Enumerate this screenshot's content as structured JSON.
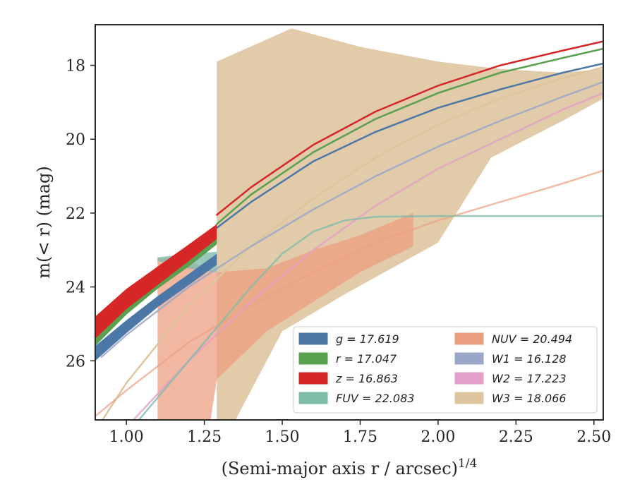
{
  "chart_data": {
    "type": "line",
    "xlabel": "(Semi-major axis r / arcsec)",
    "xlabel_super": "1/4",
    "ylabel": "m(< r) (mag)",
    "xlim": [
      0.9,
      2.53
    ],
    "ylim": [
      27.6,
      16.9
    ],
    "y_inverted": true,
    "x_ticks": [
      1.0,
      1.25,
      1.5,
      1.75,
      2.0,
      2.25,
      2.5
    ],
    "x_tick_labels": [
      "1.00",
      "1.25",
      "1.50",
      "1.75",
      "2.00",
      "2.25",
      "2.50"
    ],
    "y_ticks": [
      18,
      20,
      22,
      24,
      26
    ],
    "y_tick_labels": [
      "18",
      "20",
      "22",
      "24",
      "26"
    ],
    "grid": false,
    "legend_position": "lower-right",
    "legend": [
      {
        "label": "g = 17.619",
        "color": "#4c78a8"
      },
      {
        "label": "NUV = 20.494",
        "color": "#ec9f80"
      },
      {
        "label": "r = 17.047",
        "color": "#59a14f"
      },
      {
        "label": "W1 = 16.128",
        "color": "#9aa7c9"
      },
      {
        "label": "z = 16.863",
        "color": "#d62728"
      },
      {
        "label": "W2 = 17.223",
        "color": "#e29fc8"
      },
      {
        "label": "FUV = 22.083",
        "color": "#7fbcaa"
      },
      {
        "label": "W3 = 18.066",
        "color": "#dfc59f"
      }
    ],
    "series": [
      {
        "name": "W3",
        "color": "#dfc59f",
        "kind": "band",
        "opacity": 0.9,
        "upper": [
          [
            1.29,
            17.9
          ],
          [
            1.53,
            17.0
          ],
          [
            1.75,
            17.5
          ],
          [
            2.0,
            17.9
          ],
          [
            2.2,
            18.1
          ],
          [
            2.4,
            18.2
          ],
          [
            2.53,
            18.1
          ]
        ],
        "lower": [
          [
            1.29,
            27.6
          ],
          [
            1.35,
            27.6
          ],
          [
            1.5,
            25.2
          ],
          [
            1.7,
            24.2
          ],
          [
            2.0,
            22.8
          ],
          [
            2.17,
            20.5
          ],
          [
            2.4,
            19.5
          ],
          [
            2.53,
            18.9
          ]
        ]
      },
      {
        "name": "NUV",
        "color": "#ec9f80",
        "kind": "band",
        "opacity": 0.75,
        "upper": [
          [
            1.1,
            23.2
          ],
          [
            1.2,
            23.3
          ],
          [
            1.29,
            23.6
          ],
          [
            1.45,
            23.5
          ],
          [
            1.6,
            23.0
          ],
          [
            1.75,
            22.6
          ],
          [
            1.92,
            22.0
          ]
        ],
        "lower": [
          [
            1.1,
            27.6
          ],
          [
            1.27,
            27.6
          ],
          [
            1.29,
            26.5
          ],
          [
            1.45,
            25.2
          ],
          [
            1.6,
            24.4
          ],
          [
            1.75,
            23.6
          ],
          [
            1.92,
            22.9
          ]
        ]
      },
      {
        "name": "FUV",
        "color": "#7fbcaa",
        "kind": "band",
        "opacity": 0.8,
        "upper": [
          [
            1.1,
            23.2
          ],
          [
            1.2,
            23.1
          ],
          [
            1.29,
            23.05
          ]
        ],
        "lower": [
          [
            1.1,
            23.3
          ],
          [
            1.2,
            23.5
          ],
          [
            1.29,
            23.6
          ]
        ]
      },
      {
        "name": "W3",
        "color": "#dfc59f",
        "kind": "line",
        "width": 2.5,
        "points": [
          [
            0.9,
            27.9
          ],
          [
            1.0,
            26.6
          ],
          [
            1.2,
            24.5
          ],
          [
            1.4,
            22.9
          ],
          [
            1.6,
            21.6
          ],
          [
            1.8,
            20.5
          ],
          [
            2.0,
            19.6
          ],
          [
            2.2,
            18.9
          ],
          [
            2.4,
            18.35
          ],
          [
            2.53,
            18.05
          ]
        ]
      },
      {
        "name": "NUV",
        "color": "#ec9f80",
        "kind": "line",
        "width": 2.5,
        "opacity": 0.7,
        "points": [
          [
            0.9,
            27.5
          ],
          [
            1.0,
            26.8
          ],
          [
            1.2,
            25.5
          ],
          [
            1.4,
            24.5
          ],
          [
            1.6,
            23.6
          ],
          [
            1.8,
            22.8
          ],
          [
            2.0,
            22.2
          ],
          [
            2.2,
            21.7
          ],
          [
            2.4,
            21.2
          ],
          [
            2.53,
            20.85
          ]
        ]
      },
      {
        "name": "W2",
        "color": "#e29fc8",
        "kind": "line",
        "width": 2.5,
        "opacity": 0.8,
        "points": [
          [
            0.9,
            29.0
          ],
          [
            1.0,
            27.8
          ],
          [
            1.2,
            26.0
          ],
          [
            1.4,
            24.4
          ],
          [
            1.6,
            23.0
          ],
          [
            1.8,
            21.8
          ],
          [
            2.0,
            20.8
          ],
          [
            2.2,
            20.0
          ],
          [
            2.4,
            19.2
          ],
          [
            2.53,
            18.75
          ]
        ]
      },
      {
        "name": "FUV",
        "color": "#7fbcaa",
        "kind": "line",
        "width": 2.5,
        "opacity": 0.8,
        "points": [
          [
            0.9,
            29.5
          ],
          [
            1.0,
            28.0
          ],
          [
            1.2,
            26.0
          ],
          [
            1.4,
            24.0
          ],
          [
            1.5,
            23.1
          ],
          [
            1.6,
            22.5
          ],
          [
            1.7,
            22.2
          ],
          [
            1.8,
            22.1
          ],
          [
            2.0,
            22.08
          ],
          [
            2.53,
            22.08
          ]
        ]
      },
      {
        "name": "W1",
        "color": "#9aa7c9",
        "kind": "line",
        "width": 2.5,
        "opacity": 0.85,
        "points": [
          [
            0.92,
            25.9
          ],
          [
            1.0,
            25.3
          ],
          [
            1.2,
            24.0
          ],
          [
            1.4,
            22.9
          ],
          [
            1.6,
            21.9
          ],
          [
            1.8,
            21.0
          ],
          [
            2.0,
            20.2
          ],
          [
            2.2,
            19.5
          ],
          [
            2.4,
            18.85
          ],
          [
            2.53,
            18.45
          ]
        ]
      },
      {
        "name": "g",
        "color": "#4c78a8",
        "kind": "line",
        "width": 2.5,
        "points": [
          [
            1.29,
            22.4
          ],
          [
            1.4,
            21.7
          ],
          [
            1.6,
            20.6
          ],
          [
            1.8,
            19.8
          ],
          [
            2.0,
            19.15
          ],
          [
            2.2,
            18.65
          ],
          [
            2.4,
            18.2
          ],
          [
            2.53,
            17.95
          ]
        ]
      },
      {
        "name": "g",
        "color": "#4c78a8",
        "kind": "band",
        "opacity": 1.0,
        "upper": [
          [
            0.9,
            25.6
          ],
          [
            1.0,
            24.9
          ],
          [
            1.1,
            24.25
          ],
          [
            1.2,
            23.65
          ],
          [
            1.29,
            23.1
          ]
        ],
        "lower": [
          [
            0.9,
            26.0
          ],
          [
            1.0,
            25.25
          ],
          [
            1.1,
            24.55
          ],
          [
            1.2,
            23.95
          ],
          [
            1.29,
            23.4
          ]
        ]
      },
      {
        "name": "r",
        "color": "#59a14f",
        "kind": "line",
        "width": 2.5,
        "points": [
          [
            1.29,
            22.3
          ],
          [
            1.4,
            21.5
          ],
          [
            1.6,
            20.35
          ],
          [
            1.8,
            19.45
          ],
          [
            2.0,
            18.75
          ],
          [
            2.2,
            18.2
          ],
          [
            2.4,
            17.8
          ],
          [
            2.53,
            17.55
          ]
        ]
      },
      {
        "name": "r",
        "color": "#59a14f",
        "kind": "band",
        "opacity": 1.0,
        "upper": [
          [
            0.9,
            25.0
          ],
          [
            1.0,
            24.25
          ],
          [
            1.1,
            23.65
          ],
          [
            1.2,
            23.1
          ],
          [
            1.29,
            22.55
          ]
        ],
        "lower": [
          [
            0.9,
            25.6
          ],
          [
            1.0,
            24.75
          ],
          [
            1.1,
            24.05
          ],
          [
            1.2,
            23.45
          ],
          [
            1.29,
            22.85
          ]
        ]
      },
      {
        "name": "z",
        "color": "#d62728",
        "kind": "line",
        "width": 2.5,
        "points": [
          [
            1.29,
            22.05
          ],
          [
            1.4,
            21.3
          ],
          [
            1.6,
            20.15
          ],
          [
            1.8,
            19.25
          ],
          [
            2.0,
            18.55
          ],
          [
            2.2,
            18.0
          ],
          [
            2.4,
            17.6
          ],
          [
            2.53,
            17.35
          ]
        ]
      },
      {
        "name": "z",
        "color": "#d62728",
        "kind": "band",
        "opacity": 1.0,
        "upper": [
          [
            0.9,
            24.8
          ],
          [
            1.0,
            24.05
          ],
          [
            1.1,
            23.45
          ],
          [
            1.2,
            22.85
          ],
          [
            1.29,
            22.3
          ]
        ],
        "lower": [
          [
            0.9,
            25.4
          ],
          [
            1.0,
            24.6
          ],
          [
            1.1,
            23.95
          ],
          [
            1.2,
            23.3
          ],
          [
            1.29,
            22.7
          ]
        ]
      }
    ]
  }
}
